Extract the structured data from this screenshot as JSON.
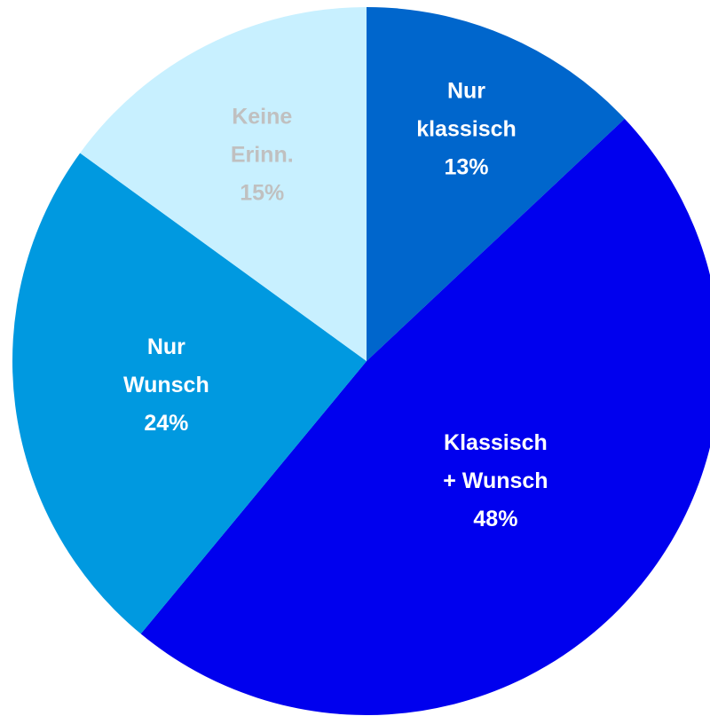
{
  "chart_data": {
    "type": "pie",
    "categories": [
      [
        "Nur",
        "klassisch"
      ],
      [
        "Klassisch",
        "+ Wunsch"
      ],
      [
        "Nur",
        "Wunsch"
      ],
      [
        "Keine",
        "Erinn."
      ]
    ],
    "values": [
      13,
      48,
      24,
      15
    ],
    "value_labels": [
      "13%",
      "48%",
      "24%",
      "15%"
    ],
    "colors": [
      "#0066cc",
      "#0000ee",
      "#0099e0",
      "#c8f0ff"
    ],
    "label_colors": [
      "#ffffff",
      "#ffffff",
      "#ffffff",
      "#c0c0c0"
    ]
  }
}
